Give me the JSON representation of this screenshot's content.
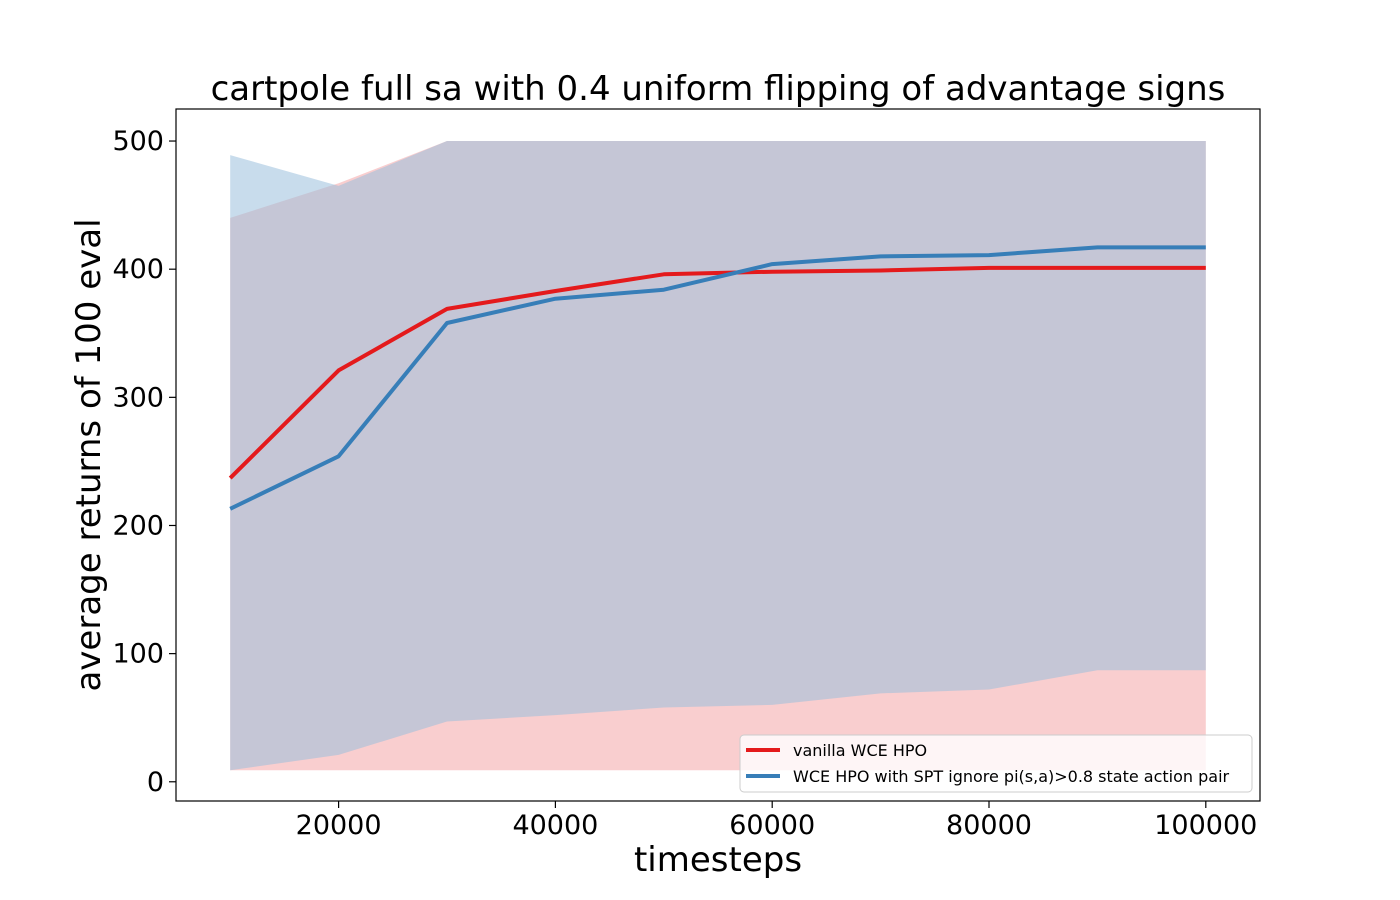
{
  "chart_data": {
    "type": "line",
    "title": "cartpole full sa with 0.4 uniform flipping of advantage signs",
    "xlabel": "timesteps",
    "ylabel": "average returns of 100 eval",
    "xlim": [
      5000,
      105000
    ],
    "ylim": [
      -15,
      525
    ],
    "xticks": [
      20000,
      40000,
      60000,
      80000,
      100000
    ],
    "xtick_labels": [
      "20000",
      "40000",
      "60000",
      "80000",
      "100000"
    ],
    "yticks": [
      0,
      100,
      200,
      300,
      400,
      500
    ],
    "ytick_labels": [
      "0",
      "100",
      "200",
      "300",
      "400",
      "500"
    ],
    "grid": false,
    "legend_position": "lower-right",
    "x": [
      10000,
      20000,
      30000,
      40000,
      50000,
      60000,
      70000,
      80000,
      90000,
      100000
    ],
    "series": [
      {
        "name": "vanilla WCE HPO",
        "color": "#e41a1c",
        "band_color": "#f4a6a7",
        "values": [
          237,
          321,
          369,
          383,
          396,
          398,
          399,
          401,
          401,
          401
        ],
        "lower": [
          9,
          9,
          9,
          9,
          9,
          9,
          9,
          9,
          9,
          9
        ],
        "upper": [
          440,
          467,
          500,
          500,
          500,
          500,
          500,
          500,
          500,
          500
        ]
      },
      {
        "name": "WCE HPO with SPT ignore pi(s,a)>0.8 state action pair",
        "color": "#377eb8",
        "band_color": "#9bbfdc",
        "values": [
          213,
          254,
          358,
          377,
          384,
          404,
          410,
          411,
          417,
          417
        ],
        "lower": [
          9,
          21,
          47,
          52,
          58,
          60,
          69,
          72,
          87,
          87
        ],
        "upper": [
          489,
          465,
          500,
          500,
          500,
          500,
          500,
          500,
          500,
          500
        ]
      }
    ]
  }
}
